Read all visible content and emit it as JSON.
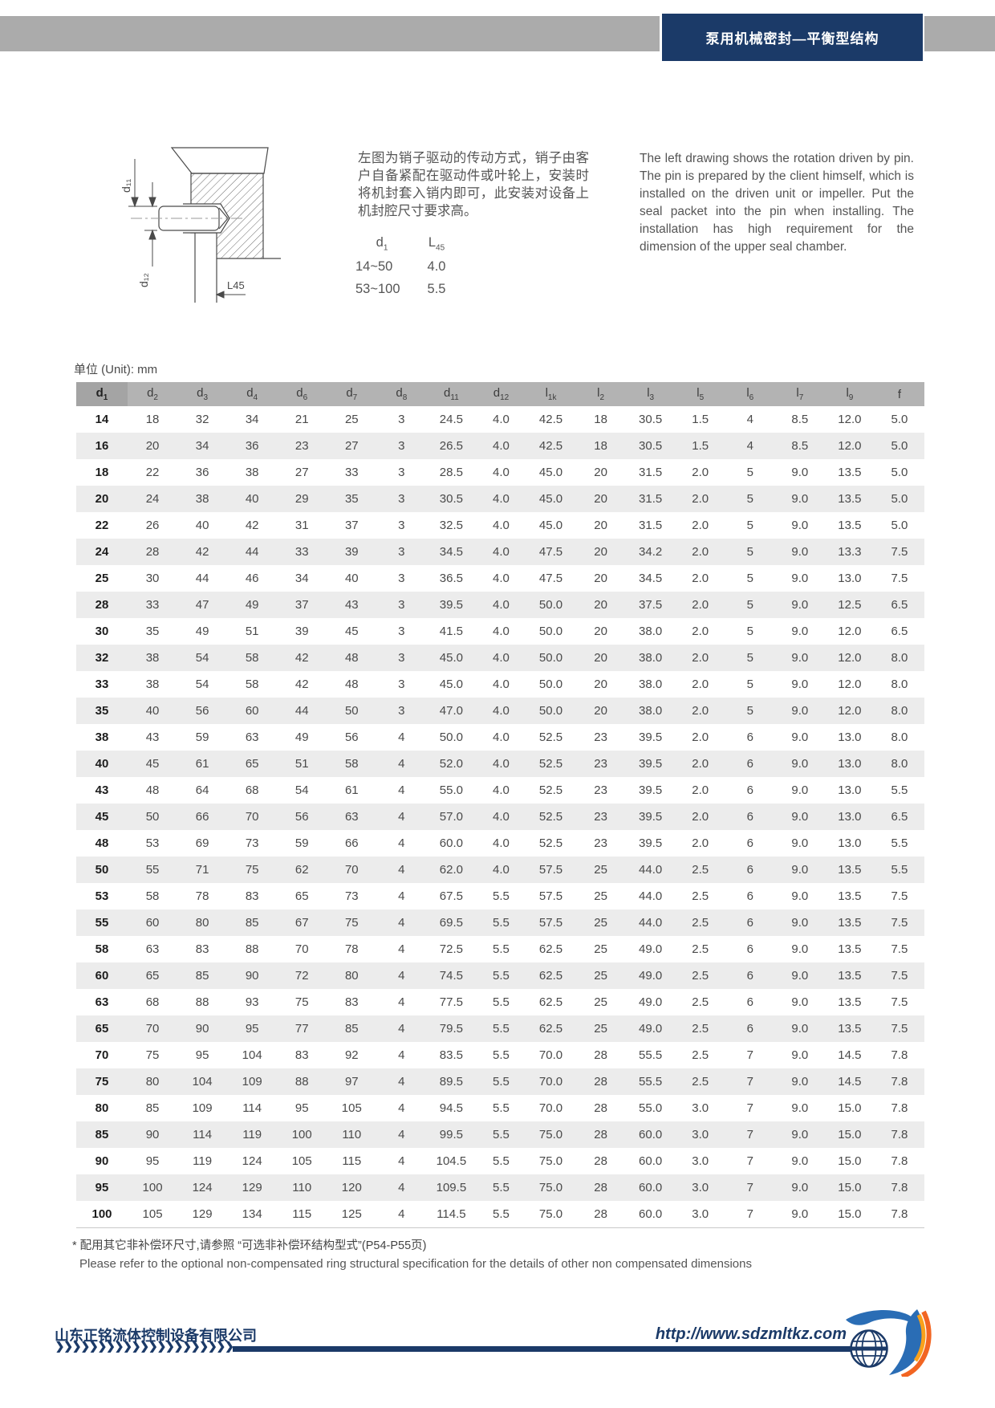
{
  "header": {
    "title": "泵用机械密封—平衡型结构"
  },
  "intro": {
    "cn": "左图为销子驱动的传动方式，销子由客户自备紧配在驱动件或叶轮上，安装时将机封套入销内即可，此安装对设备上机封腔尺寸要求高。",
    "en": "The left drawing shows the rotation driven by pin. The pin is prepared by the client himself, which is installed on the driven unit or impeller. Put the seal packet into the pin when installing. The installation has high requirement for the dimension of the upper seal chamber."
  },
  "drawing": {
    "dim_d11": "d₁₁",
    "dim_d12": "d₁₂",
    "dim_l45": "L45"
  },
  "pin_table": {
    "headers": [
      {
        "b": "d",
        "s": "1"
      },
      {
        "b": "L",
        "s": "45"
      }
    ],
    "rows": [
      [
        "14~50",
        "4.0"
      ],
      [
        "53~100",
        "5.5"
      ]
    ]
  },
  "unit_label": "单位 (Unit): mm",
  "table": {
    "columns": [
      {
        "b": "d",
        "s": "1"
      },
      {
        "b": "d",
        "s": "2"
      },
      {
        "b": "d",
        "s": "3"
      },
      {
        "b": "d",
        "s": "4"
      },
      {
        "b": "d",
        "s": "6"
      },
      {
        "b": "d",
        "s": "7"
      },
      {
        "b": "d",
        "s": "8"
      },
      {
        "b": "d",
        "s": "11"
      },
      {
        "b": "d",
        "s": "12"
      },
      {
        "b": "l",
        "s": "1k"
      },
      {
        "b": "l",
        "s": "2"
      },
      {
        "b": "l",
        "s": "3"
      },
      {
        "b": "l",
        "s": "5"
      },
      {
        "b": "l",
        "s": "6"
      },
      {
        "b": "l",
        "s": "7"
      },
      {
        "b": "l",
        "s": "9"
      },
      {
        "b": "f",
        "s": ""
      }
    ],
    "rows": [
      [
        "14",
        "18",
        "32",
        "34",
        "21",
        "25",
        "3",
        "24.5",
        "4.0",
        "42.5",
        "18",
        "30.5",
        "1.5",
        "4",
        "8.5",
        "12.0",
        "5.0"
      ],
      [
        "16",
        "20",
        "34",
        "36",
        "23",
        "27",
        "3",
        "26.5",
        "4.0",
        "42.5",
        "18",
        "30.5",
        "1.5",
        "4",
        "8.5",
        "12.0",
        "5.0"
      ],
      [
        "18",
        "22",
        "36",
        "38",
        "27",
        "33",
        "3",
        "28.5",
        "4.0",
        "45.0",
        "20",
        "31.5",
        "2.0",
        "5",
        "9.0",
        "13.5",
        "5.0"
      ],
      [
        "20",
        "24",
        "38",
        "40",
        "29",
        "35",
        "3",
        "30.5",
        "4.0",
        "45.0",
        "20",
        "31.5",
        "2.0",
        "5",
        "9.0",
        "13.5",
        "5.0"
      ],
      [
        "22",
        "26",
        "40",
        "42",
        "31",
        "37",
        "3",
        "32.5",
        "4.0",
        "45.0",
        "20",
        "31.5",
        "2.0",
        "5",
        "9.0",
        "13.5",
        "5.0"
      ],
      [
        "24",
        "28",
        "42",
        "44",
        "33",
        "39",
        "3",
        "34.5",
        "4.0",
        "47.5",
        "20",
        "34.2",
        "2.0",
        "5",
        "9.0",
        "13.3",
        "7.5"
      ],
      [
        "25",
        "30",
        "44",
        "46",
        "34",
        "40",
        "3",
        "36.5",
        "4.0",
        "47.5",
        "20",
        "34.5",
        "2.0",
        "5",
        "9.0",
        "13.0",
        "7.5"
      ],
      [
        "28",
        "33",
        "47",
        "49",
        "37",
        "43",
        "3",
        "39.5",
        "4.0",
        "50.0",
        "20",
        "37.5",
        "2.0",
        "5",
        "9.0",
        "12.5",
        "6.5"
      ],
      [
        "30",
        "35",
        "49",
        "51",
        "39",
        "45",
        "3",
        "41.5",
        "4.0",
        "50.0",
        "20",
        "38.0",
        "2.0",
        "5",
        "9.0",
        "12.0",
        "6.5"
      ],
      [
        "32",
        "38",
        "54",
        "58",
        "42",
        "48",
        "3",
        "45.0",
        "4.0",
        "50.0",
        "20",
        "38.0",
        "2.0",
        "5",
        "9.0",
        "12.0",
        "8.0"
      ],
      [
        "33",
        "38",
        "54",
        "58",
        "42",
        "48",
        "3",
        "45.0",
        "4.0",
        "50.0",
        "20",
        "38.0",
        "2.0",
        "5",
        "9.0",
        "12.0",
        "8.0"
      ],
      [
        "35",
        "40",
        "56",
        "60",
        "44",
        "50",
        "3",
        "47.0",
        "4.0",
        "50.0",
        "20",
        "38.0",
        "2.0",
        "5",
        "9.0",
        "12.0",
        "8.0"
      ],
      [
        "38",
        "43",
        "59",
        "63",
        "49",
        "56",
        "4",
        "50.0",
        "4.0",
        "52.5",
        "23",
        "39.5",
        "2.0",
        "6",
        "9.0",
        "13.0",
        "8.0"
      ],
      [
        "40",
        "45",
        "61",
        "65",
        "51",
        "58",
        "4",
        "52.0",
        "4.0",
        "52.5",
        "23",
        "39.5",
        "2.0",
        "6",
        "9.0",
        "13.0",
        "8.0"
      ],
      [
        "43",
        "48",
        "64",
        "68",
        "54",
        "61",
        "4",
        "55.0",
        "4.0",
        "52.5",
        "23",
        "39.5",
        "2.0",
        "6",
        "9.0",
        "13.0",
        "5.5"
      ],
      [
        "45",
        "50",
        "66",
        "70",
        "56",
        "63",
        "4",
        "57.0",
        "4.0",
        "52.5",
        "23",
        "39.5",
        "2.0",
        "6",
        "9.0",
        "13.0",
        "6.5"
      ],
      [
        "48",
        "53",
        "69",
        "73",
        "59",
        "66",
        "4",
        "60.0",
        "4.0",
        "52.5",
        "23",
        "39.5",
        "2.0",
        "6",
        "9.0",
        "13.0",
        "5.5"
      ],
      [
        "50",
        "55",
        "71",
        "75",
        "62",
        "70",
        "4",
        "62.0",
        "4.0",
        "57.5",
        "25",
        "44.0",
        "2.5",
        "6",
        "9.0",
        "13.5",
        "5.5"
      ],
      [
        "53",
        "58",
        "78",
        "83",
        "65",
        "73",
        "4",
        "67.5",
        "5.5",
        "57.5",
        "25",
        "44.0",
        "2.5",
        "6",
        "9.0",
        "13.5",
        "7.5"
      ],
      [
        "55",
        "60",
        "80",
        "85",
        "67",
        "75",
        "4",
        "69.5",
        "5.5",
        "57.5",
        "25",
        "44.0",
        "2.5",
        "6",
        "9.0",
        "13.5",
        "7.5"
      ],
      [
        "58",
        "63",
        "83",
        "88",
        "70",
        "78",
        "4",
        "72.5",
        "5.5",
        "62.5",
        "25",
        "49.0",
        "2.5",
        "6",
        "9.0",
        "13.5",
        "7.5"
      ],
      [
        "60",
        "65",
        "85",
        "90",
        "72",
        "80",
        "4",
        "74.5",
        "5.5",
        "62.5",
        "25",
        "49.0",
        "2.5",
        "6",
        "9.0",
        "13.5",
        "7.5"
      ],
      [
        "63",
        "68",
        "88",
        "93",
        "75",
        "83",
        "4",
        "77.5",
        "5.5",
        "62.5",
        "25",
        "49.0",
        "2.5",
        "6",
        "9.0",
        "13.5",
        "7.5"
      ],
      [
        "65",
        "70",
        "90",
        "95",
        "77",
        "85",
        "4",
        "79.5",
        "5.5",
        "62.5",
        "25",
        "49.0",
        "2.5",
        "6",
        "9.0",
        "13.5",
        "7.5"
      ],
      [
        "70",
        "75",
        "95",
        "104",
        "83",
        "92",
        "4",
        "83.5",
        "5.5",
        "70.0",
        "28",
        "55.5",
        "2.5",
        "7",
        "9.0",
        "14.5",
        "7.8"
      ],
      [
        "75",
        "80",
        "104",
        "109",
        "88",
        "97",
        "4",
        "89.5",
        "5.5",
        "70.0",
        "28",
        "55.5",
        "2.5",
        "7",
        "9.0",
        "14.5",
        "7.8"
      ],
      [
        "80",
        "85",
        "109",
        "114",
        "95",
        "105",
        "4",
        "94.5",
        "5.5",
        "70.0",
        "28",
        "55.0",
        "3.0",
        "7",
        "9.0",
        "15.0",
        "7.8"
      ],
      [
        "85",
        "90",
        "114",
        "119",
        "100",
        "110",
        "4",
        "99.5",
        "5.5",
        "75.0",
        "28",
        "60.0",
        "3.0",
        "7",
        "9.0",
        "15.0",
        "7.8"
      ],
      [
        "90",
        "95",
        "119",
        "124",
        "105",
        "115",
        "4",
        "104.5",
        "5.5",
        "75.0",
        "28",
        "60.0",
        "3.0",
        "7",
        "9.0",
        "15.0",
        "7.8"
      ],
      [
        "95",
        "100",
        "124",
        "129",
        "110",
        "120",
        "4",
        "109.5",
        "5.5",
        "75.0",
        "28",
        "60.0",
        "3.0",
        "7",
        "9.0",
        "15.0",
        "7.8"
      ],
      [
        "100",
        "105",
        "129",
        "134",
        "115",
        "125",
        "4",
        "114.5",
        "5.5",
        "75.0",
        "28",
        "60.0",
        "3.0",
        "7",
        "9.0",
        "15.0",
        "7.8"
      ]
    ]
  },
  "footnote": {
    "cn": "* 配用其它非补偿环尺寸,请参照 “可选非补偿环结构型式”(P54-P55页)",
    "en": "Please refer to the optional non-compensated ring structural specification for the details of other non compensated dimensions"
  },
  "footer": {
    "company": "山东正铭流体控制设备有限公司",
    "url": "http://www.sdzmltkz.com",
    "chevrons": "❯❯❯❯❯❯❯❯❯❯❯❯❯❯❯❯❯❯❯❯❯❯❯❯❯❯❯❯❯❯"
  },
  "colors": {
    "navy": "#1b3a68",
    "bar_gray": "#ababab",
    "table_header": "#b3b3b3",
    "table_header_first": "#a4a4a4",
    "stripe": "#ececec",
    "logo_blue": "#2a6db5",
    "orange": "#f26522",
    "orange_light": "#f9a11b"
  }
}
